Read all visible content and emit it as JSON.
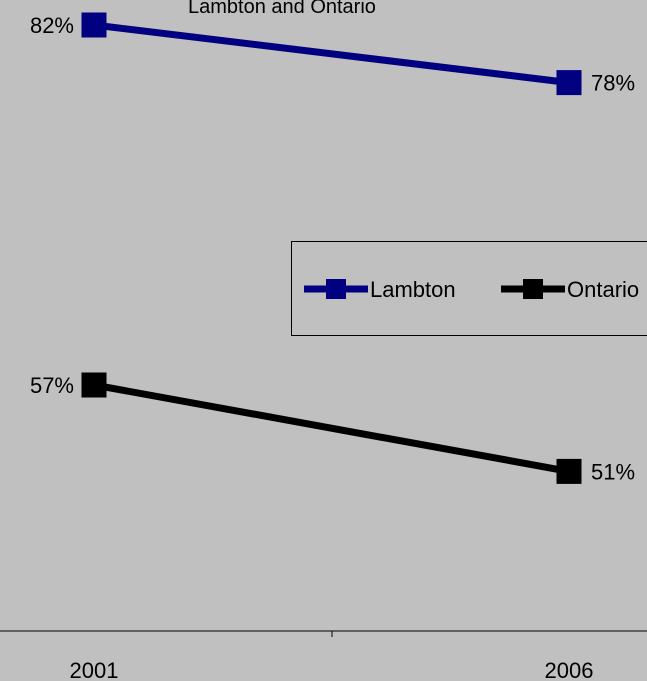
{
  "chart_data": {
    "type": "line",
    "title": "Lambton and Ontario",
    "categories": [
      "2001",
      "2006"
    ],
    "series": [
      {
        "name": "Lambton",
        "values": [
          82,
          78
        ],
        "labels": [
          "82%",
          "78%"
        ],
        "color": "#000080"
      },
      {
        "name": "Ontario",
        "values": [
          57,
          51
        ],
        "labels": [
          "57%",
          "51%"
        ],
        "color": "#000000"
      }
    ],
    "legend": {
      "position": "center-right"
    },
    "grid": false,
    "background": "#c0c0c0"
  }
}
